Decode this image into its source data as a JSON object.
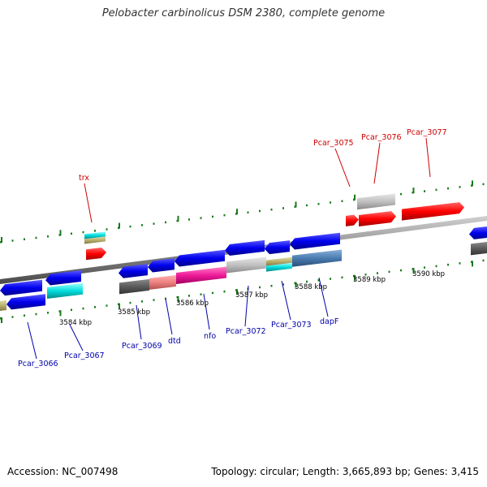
{
  "title": "Pelobacter carbinolicus DSM 2380, complete genome",
  "footer": {
    "accession": "Accession: NC_007498",
    "summary": "Topology: circular; Length: 3,665,893 bp; Genes: 3,415"
  },
  "colors": {
    "forward_label": "#cc0000",
    "reverse_label": "#0000aa",
    "backbone": "#8a8a8a",
    "scale_dots": "#1a7a1a"
  },
  "scale_ticks": [
    "3584 kbp",
    "3585 kbp",
    "3586 kbp",
    "3587 kbp",
    "3588 kbp",
    "3589 kbp",
    "3590 kbp"
  ],
  "forward_labels": [
    "trx",
    "Pcar_3075",
    "Pcar_3076",
    "Pcar_3077"
  ],
  "reverse_labels": [
    "Pcar_3066",
    "Pcar_3067",
    "Pcar_3069",
    "dtd",
    "nfo",
    "Pcar_3072",
    "Pcar_3073",
    "dapF"
  ]
}
